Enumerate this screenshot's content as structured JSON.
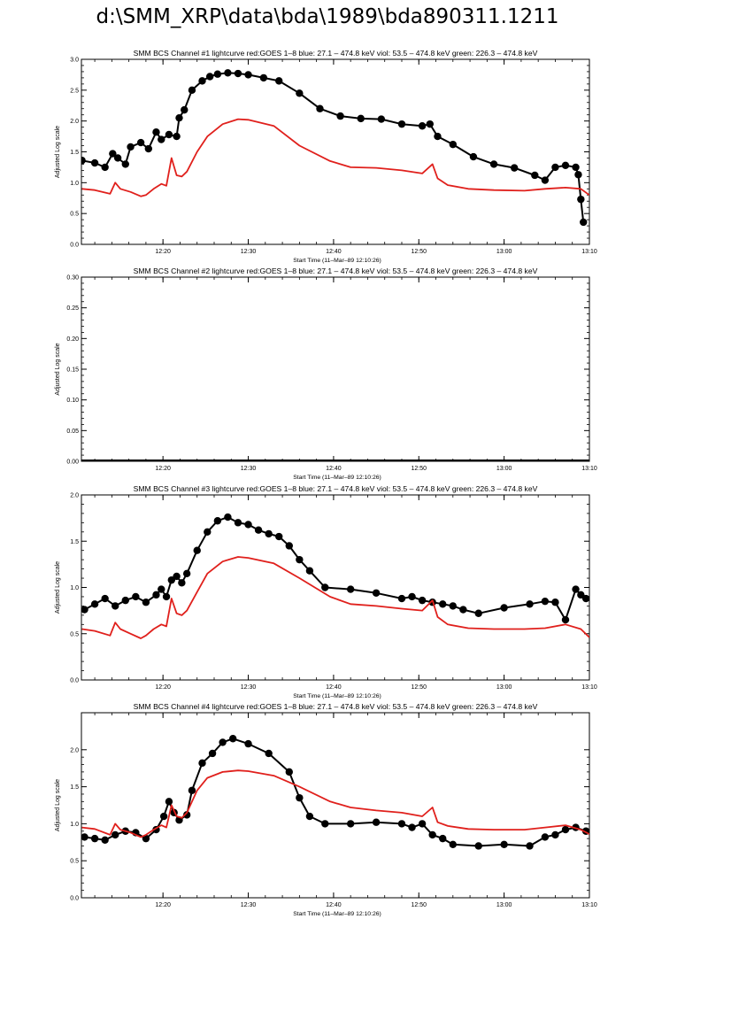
{
  "page_title": "d:\\SMM_XRP\\data\\bda\\1989\\bda890311.1211",
  "colors": {
    "black_series": "#000000",
    "red_series": "#e0201c",
    "frame": "#000000"
  },
  "chart_data": [
    {
      "type": "line",
      "title": "SMM BCS Channel #1 lightcurve  red:GOES 1–8  blue: 27.1 – 474.8 keV  viol: 53.5 – 474.8 keV  green: 226.3 – 474.8 keV",
      "xlabel": "Start Time (11–Mar–89 12:10:26)",
      "ylabel": "Adjusted Log scale",
      "xlim": [
        12.1739,
        13.1667
      ],
      "ylim": [
        0,
        3.0
      ],
      "yticks": [
        0.0,
        0.5,
        1.0,
        1.5,
        2.0,
        2.5,
        3.0
      ],
      "ytick_labels": [
        "0.0",
        "0.5",
        "1.0",
        "1.5",
        "2.0",
        "2.5",
        "3.0"
      ],
      "xticks": [
        12.3333,
        12.5,
        12.6667,
        12.8333,
        13.0,
        13.1667
      ],
      "xtick_labels": [
        "12:20",
        "12:30",
        "12:40",
        "12:50",
        "13:00",
        "13:10"
      ],
      "grid": false,
      "series": [
        {
          "style": "dots",
          "color": "#000000",
          "x": [
            12.175,
            12.2,
            12.22,
            12.235,
            12.245,
            12.26,
            12.27,
            12.29,
            12.305,
            12.32,
            12.33,
            12.345,
            12.36,
            12.365,
            12.375,
            12.39,
            12.41,
            12.425,
            12.44,
            12.46,
            12.48,
            12.5,
            12.53,
            12.56,
            12.6,
            12.64,
            12.68,
            12.72,
            12.76,
            12.8,
            12.84,
            12.855,
            12.87,
            12.9,
            12.94,
            12.98,
            13.02,
            13.06,
            13.08,
            13.1,
            13.12,
            13.14,
            13.145,
            13.15,
            13.155
          ],
          "y": [
            1.36,
            1.32,
            1.25,
            1.47,
            1.4,
            1.3,
            1.58,
            1.65,
            1.55,
            1.82,
            1.7,
            1.78,
            1.75,
            2.05,
            2.18,
            2.5,
            2.65,
            2.72,
            2.76,
            2.78,
            2.77,
            2.75,
            2.7,
            2.65,
            2.45,
            2.2,
            2.08,
            2.04,
            2.03,
            1.95,
            1.92,
            1.95,
            1.75,
            1.62,
            1.42,
            1.3,
            1.24,
            1.12,
            1.04,
            1.25,
            1.28,
            1.25,
            1.13,
            0.73,
            0.36
          ]
        },
        {
          "style": "line",
          "color": "#e0201c",
          "x": [
            12.175,
            12.2,
            12.23,
            12.24,
            12.25,
            12.27,
            12.29,
            12.3,
            12.315,
            12.33,
            12.34,
            12.35,
            12.36,
            12.37,
            12.38,
            12.4,
            12.42,
            12.45,
            12.48,
            12.5,
            12.55,
            12.6,
            12.66,
            12.7,
            12.75,
            12.8,
            12.84,
            12.86,
            12.87,
            12.89,
            12.93,
            12.98,
            13.04,
            13.08,
            13.12,
            13.15,
            13.1667
          ],
          "y": [
            0.9,
            0.88,
            0.82,
            1.0,
            0.9,
            0.85,
            0.78,
            0.8,
            0.9,
            0.98,
            0.95,
            1.4,
            1.12,
            1.1,
            1.18,
            1.5,
            1.75,
            1.95,
            2.03,
            2.02,
            1.92,
            1.6,
            1.35,
            1.25,
            1.24,
            1.2,
            1.15,
            1.3,
            1.07,
            0.96,
            0.9,
            0.88,
            0.87,
            0.9,
            0.92,
            0.9,
            0.8
          ]
        }
      ]
    },
    {
      "type": "line",
      "title": "SMM BCS Channel #2 lightcurve  red:GOES 1–8  blue: 27.1 – 474.8 keV  viol: 53.5 – 474.8 keV  green: 226.3 – 474.8 keV",
      "xlabel": "Start Time (11–Mar–89 12:10:26)",
      "ylabel": "Adjusted Log scale",
      "xlim": [
        12.1739,
        13.1667
      ],
      "ylim": [
        0,
        0.3
      ],
      "yticks": [
        0.0,
        0.05,
        0.1,
        0.15,
        0.2,
        0.25,
        0.3
      ],
      "ytick_labels": [
        "0.00",
        "0.05",
        "0.10",
        "0.15",
        "0.20",
        "0.25",
        "0.30"
      ],
      "xticks": [
        12.3333,
        12.5,
        12.6667,
        12.8333,
        13.0,
        13.1667
      ],
      "xtick_labels": [
        "12:20",
        "12:30",
        "12:40",
        "12:50",
        "13:00",
        "13:10"
      ],
      "grid": false,
      "series": [
        {
          "style": "dots",
          "color": "#000000",
          "x": [
            12.18,
            12.25,
            12.35,
            12.45,
            12.55,
            12.65,
            12.75,
            12.85,
            12.95,
            13.05,
            13.16
          ],
          "y": [
            0,
            0,
            0,
            0,
            0,
            0,
            0,
            0,
            0,
            0,
            0
          ]
        }
      ]
    },
    {
      "type": "line",
      "title": "SMM BCS Channel #3 lightcurve  red:GOES 1–8  blue: 27.1 – 474.8 keV  viol: 53.5 – 474.8 keV  green: 226.3 – 474.8 keV",
      "xlabel": "Start Time (11–Mar–89 12:10:26)",
      "ylabel": "Adjusted Log scale",
      "xlim": [
        12.1739,
        13.1667
      ],
      "ylim": [
        0,
        2.0
      ],
      "yticks": [
        0.0,
        0.5,
        1.0,
        1.5,
        2.0
      ],
      "ytick_labels": [
        "0.0",
        "0.5",
        "1.0",
        "1.5",
        "2.0"
      ],
      "xticks": [
        12.3333,
        12.5,
        12.6667,
        12.8333,
        13.0,
        13.1667
      ],
      "xtick_labels": [
        "12:20",
        "12:30",
        "12:40",
        "12:50",
        "13:00",
        "13:10"
      ],
      "grid": false,
      "series": [
        {
          "style": "dots",
          "color": "#000000",
          "x": [
            12.18,
            12.2,
            12.22,
            12.24,
            12.26,
            12.28,
            12.3,
            12.32,
            12.33,
            12.34,
            12.35,
            12.36,
            12.37,
            12.38,
            12.4,
            12.42,
            12.44,
            12.46,
            12.48,
            12.5,
            12.52,
            12.54,
            12.56,
            12.58,
            12.6,
            12.62,
            12.65,
            12.7,
            12.75,
            12.8,
            12.82,
            12.84,
            12.86,
            12.88,
            12.9,
            12.92,
            12.95,
            13.0,
            13.05,
            13.08,
            13.1,
            13.12,
            13.14,
            13.15,
            13.16
          ],
          "y": [
            0.76,
            0.82,
            0.88,
            0.8,
            0.86,
            0.9,
            0.84,
            0.92,
            0.98,
            0.9,
            1.08,
            1.12,
            1.05,
            1.15,
            1.4,
            1.6,
            1.72,
            1.76,
            1.7,
            1.68,
            1.62,
            1.58,
            1.55,
            1.45,
            1.3,
            1.18,
            1.0,
            0.98,
            0.94,
            0.88,
            0.9,
            0.86,
            0.84,
            0.82,
            0.8,
            0.76,
            0.72,
            0.78,
            0.82,
            0.85,
            0.84,
            0.65,
            0.98,
            0.92,
            0.88
          ]
        },
        {
          "style": "line",
          "color": "#e0201c",
          "x": [
            12.175,
            12.2,
            12.23,
            12.24,
            12.25,
            12.27,
            12.29,
            12.3,
            12.315,
            12.33,
            12.34,
            12.35,
            12.36,
            12.37,
            12.38,
            12.4,
            12.42,
            12.45,
            12.48,
            12.5,
            12.55,
            12.6,
            12.66,
            12.7,
            12.75,
            12.8,
            12.84,
            12.86,
            12.87,
            12.89,
            12.93,
            12.98,
            13.04,
            13.08,
            13.12,
            13.15,
            13.1667
          ],
          "y": [
            0.55,
            0.53,
            0.48,
            0.62,
            0.55,
            0.5,
            0.45,
            0.48,
            0.55,
            0.6,
            0.58,
            0.88,
            0.72,
            0.7,
            0.75,
            0.95,
            1.15,
            1.28,
            1.33,
            1.32,
            1.26,
            1.1,
            0.9,
            0.82,
            0.8,
            0.77,
            0.75,
            0.86,
            0.68,
            0.6,
            0.56,
            0.55,
            0.55,
            0.56,
            0.6,
            0.55,
            0.46
          ]
        }
      ]
    },
    {
      "type": "line",
      "title": "SMM BCS Channel #4 lightcurve  red:GOES 1–8  blue: 27.1 – 474.8 keV  viol: 53.5 – 474.8 keV  green: 226.3 – 474.8 keV",
      "xlabel": "Start Time (11–Mar–89 12:10:26)",
      "ylabel": "Adjusted Log scale",
      "xlim": [
        12.1739,
        13.1667
      ],
      "ylim": [
        0,
        2.5
      ],
      "yticks": [
        0.0,
        0.5,
        1.0,
        1.5,
        2.0
      ],
      "ytick_labels": [
        "0.0",
        "0.5",
        "1.0",
        "1.5",
        "2.0"
      ],
      "xticks": [
        12.3333,
        12.5,
        12.6667,
        12.8333,
        13.0,
        13.1667
      ],
      "xtick_labels": [
        "12:20",
        "12:30",
        "12:40",
        "12:50",
        "13:00",
        "13:10"
      ],
      "grid": false,
      "series": [
        {
          "style": "dots",
          "color": "#000000",
          "x": [
            12.18,
            12.2,
            12.22,
            12.24,
            12.26,
            12.28,
            12.3,
            12.32,
            12.335,
            12.345,
            12.355,
            12.365,
            12.38,
            12.39,
            12.41,
            12.43,
            12.45,
            12.47,
            12.5,
            12.54,
            12.58,
            12.6,
            12.62,
            12.65,
            12.7,
            12.75,
            12.8,
            12.82,
            12.84,
            12.86,
            12.88,
            12.9,
            12.95,
            13.0,
            13.05,
            13.08,
            13.1,
            13.12,
            13.14,
            13.16
          ],
          "y": [
            0.82,
            0.8,
            0.78,
            0.85,
            0.9,
            0.88,
            0.8,
            0.92,
            1.1,
            1.3,
            1.15,
            1.05,
            1.12,
            1.45,
            1.82,
            1.95,
            2.1,
            2.15,
            2.08,
            1.95,
            1.7,
            1.35,
            1.1,
            1.0,
            1.0,
            1.02,
            1.0,
            0.95,
            1.0,
            0.85,
            0.8,
            0.72,
            0.7,
            0.72,
            0.7,
            0.82,
            0.85,
            0.92,
            0.95,
            0.9
          ]
        },
        {
          "style": "line",
          "color": "#e0201c",
          "x": [
            12.175,
            12.2,
            12.23,
            12.24,
            12.25,
            12.27,
            12.29,
            12.3,
            12.315,
            12.33,
            12.34,
            12.35,
            12.36,
            12.37,
            12.38,
            12.4,
            12.42,
            12.45,
            12.48,
            12.5,
            12.55,
            12.6,
            12.66,
            12.7,
            12.75,
            12.8,
            12.84,
            12.86,
            12.87,
            12.89,
            12.93,
            12.98,
            13.04,
            13.08,
            13.12,
            13.15,
            13.1667
          ],
          "y": [
            0.95,
            0.93,
            0.85,
            1.0,
            0.92,
            0.88,
            0.82,
            0.85,
            0.92,
            0.98,
            0.95,
            1.25,
            1.1,
            1.08,
            1.15,
            1.45,
            1.62,
            1.7,
            1.72,
            1.71,
            1.65,
            1.5,
            1.3,
            1.22,
            1.18,
            1.15,
            1.1,
            1.22,
            1.02,
            0.97,
            0.93,
            0.92,
            0.92,
            0.95,
            0.98,
            0.92,
            0.86
          ]
        }
      ]
    }
  ]
}
